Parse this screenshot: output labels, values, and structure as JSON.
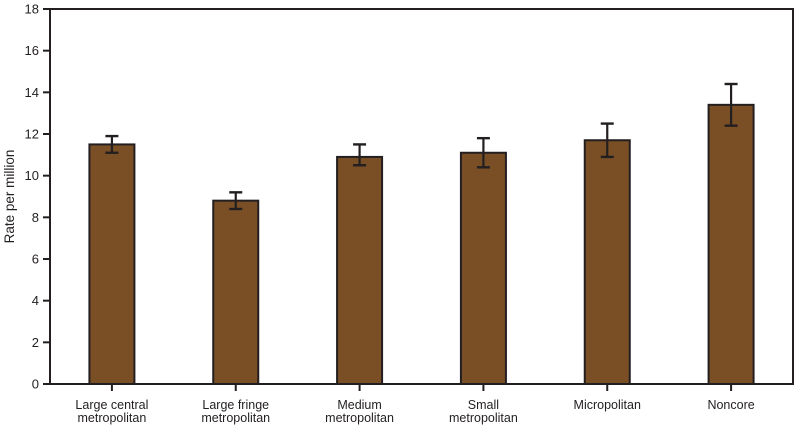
{
  "chart_data": {
    "type": "bar",
    "title": "",
    "xlabel": "",
    "ylabel": "Rate per million",
    "ylim": [
      0,
      18
    ],
    "ytick_step": 2,
    "grid": false,
    "legend": null,
    "categories": [
      "Large central metropolitan",
      "Large fringe metropolitan",
      "Medium metropolitan",
      "Small metropolitan",
      "Micropolitan",
      "Noncore"
    ],
    "category_label_lines": [
      [
        "Large central",
        "metropolitan"
      ],
      [
        "Large fringe",
        "metropolitan"
      ],
      [
        "Medium",
        "metropolitan"
      ],
      [
        "Small",
        "metropolitan"
      ],
      [
        "Micropolitan"
      ],
      [
        "Noncore"
      ]
    ],
    "values": [
      11.5,
      8.8,
      10.9,
      11.1,
      11.7,
      13.4
    ],
    "error_low": [
      11.1,
      8.4,
      10.5,
      10.4,
      10.9,
      12.4
    ],
    "error_high": [
      11.9,
      9.2,
      11.5,
      11.8,
      12.5,
      14.4
    ],
    "colors": {
      "bar_fill": "#7A4F26",
      "bar_edge": "#231f20",
      "axis": "#231f20",
      "text": "#231f20",
      "background": "#ffffff"
    }
  }
}
